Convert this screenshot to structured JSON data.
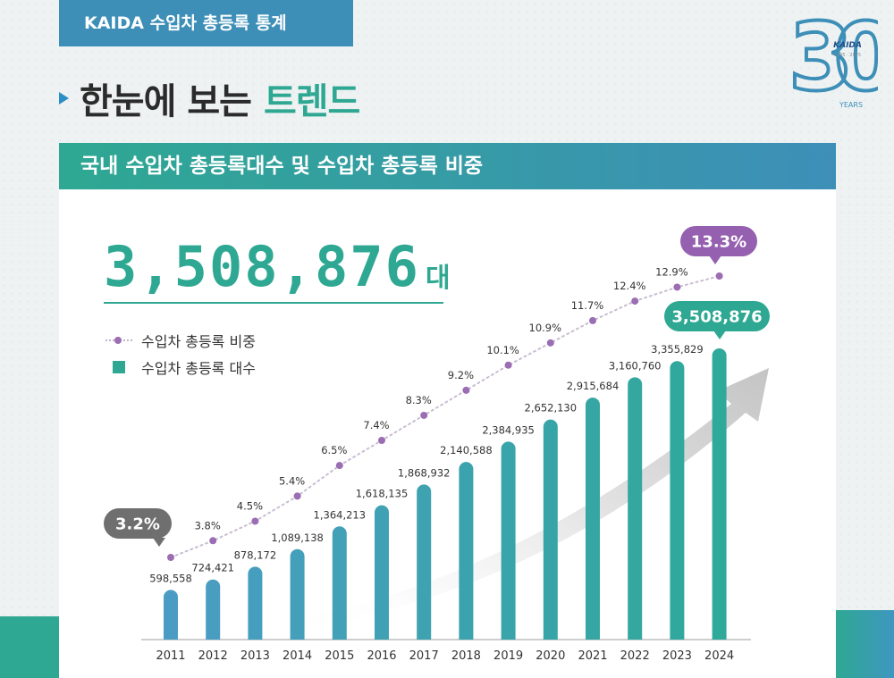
{
  "header": {
    "badge": "KAIDA 수입차 총등록 통계",
    "headline_prefix": "한눈에 보는",
    "headline_highlight": "트렌드"
  },
  "logo": {
    "number": "30",
    "brand": "KAIDA",
    "years_range": "1995 · 2025",
    "years_label": "YEARS"
  },
  "banner": {
    "title": "국내 수입차 총등록대수 및 수입차 총등록 비중"
  },
  "counter": {
    "value": "3,508,876",
    "unit": "대"
  },
  "legend": {
    "line_label": "수입차 총등록 비중",
    "bar_label": "수입차 총등록 대수"
  },
  "chart_data": {
    "type": "bar",
    "categories": [
      "2011",
      "2012",
      "2013",
      "2014",
      "2015",
      "2016",
      "2017",
      "2018",
      "2019",
      "2020",
      "2021",
      "2022",
      "2023",
      "2024"
    ],
    "series": [
      {
        "name": "수입차 총등록 대수",
        "type": "bar",
        "values": [
          598558,
          724421,
          878172,
          1089138,
          1364213,
          1618135,
          1868932,
          2140588,
          2384935,
          2652130,
          2915684,
          3160760,
          3355829,
          3508876
        ],
        "labels": [
          "598,558",
          "724,421",
          "878,172",
          "1,089,138",
          "1,364,213",
          "1,618,135",
          "1,868,932",
          "2,140,588",
          "2,384,935",
          "2,652,130",
          "2,915,684",
          "3,160,760",
          "3,355,829",
          "3,508,876"
        ]
      },
      {
        "name": "수입차 총등록 비중",
        "type": "line",
        "values": [
          3.2,
          3.8,
          4.5,
          5.4,
          6.5,
          7.4,
          8.3,
          9.2,
          10.1,
          10.9,
          11.7,
          12.4,
          12.9,
          13.3
        ],
        "labels": [
          "3.2%",
          "3.8%",
          "4.5%",
          "5.4%",
          "6.5%",
          "7.4%",
          "8.3%",
          "9.2%",
          "10.1%",
          "10.9%",
          "11.7%",
          "12.4%",
          "12.9%",
          "13.3%"
        ]
      }
    ],
    "callouts": {
      "first_rate": "3.2%",
      "last_rate": "13.3%",
      "last_count": "3,508,876"
    },
    "colors": {
      "bar_start": "#4a9cc4",
      "bar_end": "#2fa99a",
      "line": "#9b6db3",
      "callout_grey": "#6f6f6f",
      "callout_purple": "#9560b0",
      "callout_teal": "#2ea892"
    }
  }
}
